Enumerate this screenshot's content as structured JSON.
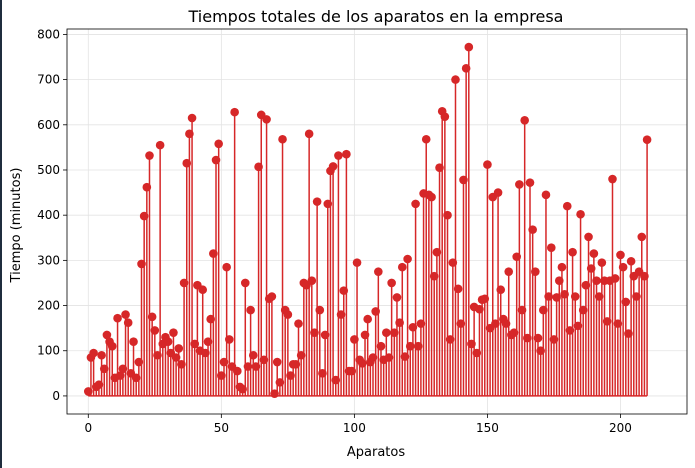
{
  "chart_data": {
    "type": "stem",
    "title": "Tiempos totales de los aparatos en la empresa",
    "xlabel": "Aparatos",
    "ylabel": "Tiempo (minutos)",
    "xlim": [
      -8,
      225
    ],
    "ylim": [
      -40,
      812
    ],
    "xticks": [
      0,
      50,
      100,
      150,
      200
    ],
    "yticks": [
      0,
      100,
      200,
      300,
      400,
      500,
      600,
      700,
      800
    ],
    "grid": true,
    "color": "#d62728",
    "series": [
      {
        "values": [
          10,
          85,
          95,
          20,
          25,
          90,
          60,
          135,
          120,
          110,
          40,
          172,
          45,
          60,
          180,
          162,
          50,
          120,
          40,
          75,
          292,
          398,
          462,
          532,
          175,
          145,
          90,
          555,
          115,
          130,
          120,
          95,
          140,
          85,
          105,
          70,
          250,
          515,
          580,
          615,
          115,
          245,
          100,
          235,
          95,
          120,
          170,
          315,
          522,
          558,
          45,
          75,
          285,
          125,
          65,
          628,
          55,
          20,
          15,
          250,
          65,
          190,
          90,
          65,
          507,
          622,
          80,
          612,
          215,
          220,
          5,
          75,
          30,
          568,
          190,
          180,
          45,
          70,
          70,
          160,
          90,
          250,
          245,
          580,
          255,
          140,
          430,
          190,
          50,
          135,
          425,
          498,
          508,
          35,
          532,
          180,
          233,
          535,
          55,
          55,
          125,
          295,
          80,
          72,
          135,
          170,
          75,
          85,
          187,
          275,
          110,
          80,
          140,
          85,
          250,
          140,
          218,
          162,
          285,
          87,
          303,
          110,
          152,
          425,
          110,
          160,
          448,
          568,
          445,
          440,
          265,
          318,
          505,
          630,
          618,
          400,
          125,
          295,
          700,
          237,
          160,
          478,
          725,
          772,
          115,
          197,
          95,
          192,
          213,
          215,
          512,
          150,
          440,
          160,
          450,
          235,
          170,
          160,
          275,
          135,
          140,
          308,
          468,
          190,
          610,
          128,
          472,
          368,
          275,
          128,
          100,
          190,
          445,
          220,
          328,
          125,
          218,
          255,
          285,
          225,
          420,
          145,
          318,
          220,
          155,
          402,
          190,
          245,
          352,
          282,
          315,
          255,
          220,
          295,
          255,
          165,
          255,
          480,
          260,
          160,
          312,
          285,
          208,
          138,
          298,
          265,
          220,
          275,
          352,
          265,
          567
        ]
      }
    ]
  }
}
